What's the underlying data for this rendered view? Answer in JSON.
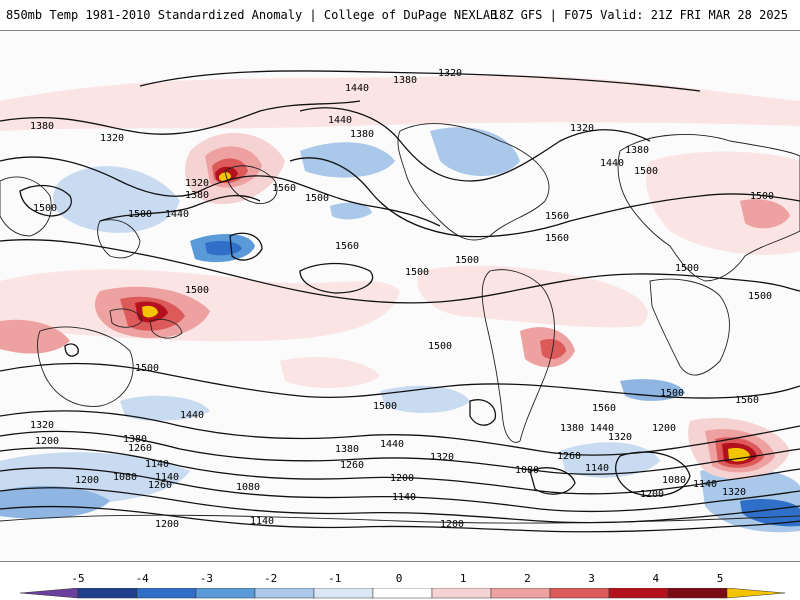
{
  "header": {
    "title": "850mb Temp 1981-2010 Standardized Anomaly | College of DuPage NEXLAB",
    "run_info": "18Z GFS | F075 Valid: 21Z FRI MAR 28 2025"
  },
  "colorbar": {
    "ticks": [
      "-5",
      "-4",
      "-3",
      "-2",
      "-1",
      "0",
      "1",
      "2",
      "3",
      "4",
      "5"
    ],
    "colors": [
      "#6a3fa0",
      "#1f3f8a",
      "#2f6fc8",
      "#5b9ad8",
      "#a9c8ea",
      "#dbe7f5",
      "#ffffff",
      "#f6d3d3",
      "#eea1a1",
      "#dc5a5a",
      "#b4111f",
      "#7a0a14",
      "#f5c400"
    ]
  },
  "contours": {
    "labels": [
      "1380",
      "1320",
      "1440",
      "1320",
      "1380",
      "1320",
      "1380",
      "1440",
      "1500",
      "1380",
      "1440",
      "1500",
      "1560",
      "1320",
      "1380",
      "1500",
      "1440",
      "1500",
      "1560",
      "1500",
      "1560",
      "1500",
      "1560",
      "1500",
      "1500",
      "1500",
      "1500",
      "1500",
      "1500",
      "1500",
      "1440",
      "1320",
      "1200",
      "1380",
      "1260",
      "1140",
      "1140",
      "1080",
      "1200",
      "1260",
      "1080",
      "1200",
      "1140",
      "1260",
      "1380",
      "1440",
      "1320",
      "1200",
      "1080",
      "1140",
      "1200",
      "1140",
      "1080",
      "1140",
      "1260",
      "1380",
      "1440",
      "1320",
      "1200",
      "1500",
      "1560",
      "1560",
      "1320",
      "1200"
    ]
  }
}
